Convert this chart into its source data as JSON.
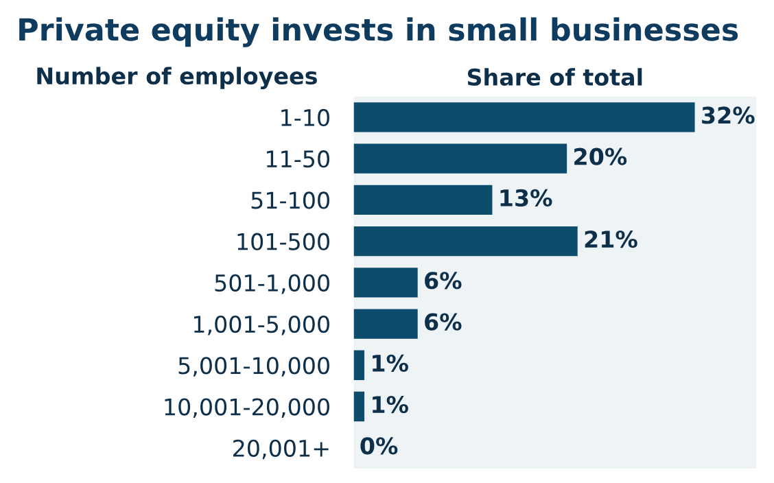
{
  "chart_data": {
    "type": "bar",
    "orientation": "horizontal",
    "title": "Private equity invests in small businesses",
    "ylabel": "Number of employees",
    "xlabel": "Share of total",
    "categories": [
      "1-10",
      "11-50",
      "51-100",
      "101-500",
      "501-1,000",
      "1,001-5,000",
      "5,001-10,000",
      "10,001-20,000",
      "20,001+"
    ],
    "values": [
      32,
      20,
      13,
      21,
      6,
      6,
      1,
      1,
      0
    ],
    "value_labels": [
      "32%",
      "20%",
      "13%",
      "21%",
      "6%",
      "6%",
      "1%",
      "1%",
      "0%"
    ],
    "color": "#0e4c6e",
    "grid": false
  }
}
